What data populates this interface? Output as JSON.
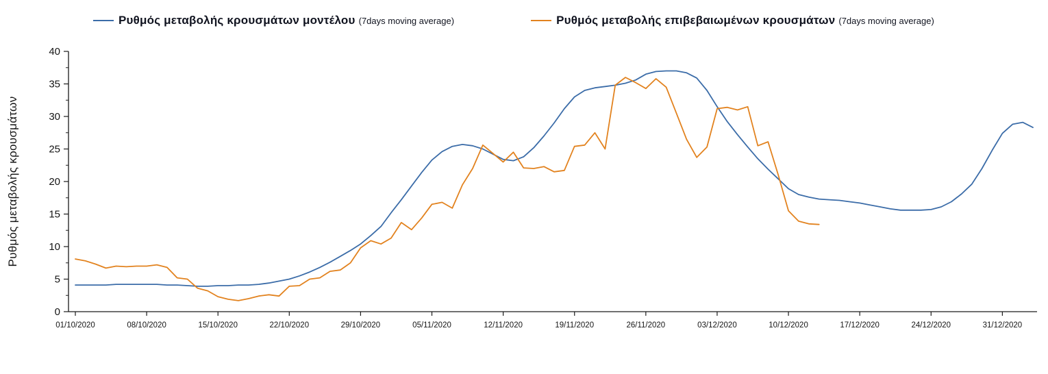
{
  "colors": {
    "model_line": "#3B6CA8",
    "confirmed_line": "#E2821E",
    "axis": "#1a1a1a",
    "text": "#10131f",
    "background": "#ffffff"
  },
  "legend": [
    {
      "label": "Ρυθμός μεταβολής κρουσμάτων μοντέλου",
      "suffix": "(7days moving average)"
    },
    {
      "label": "Ρυθμός μεταβολής επιβεβαιωμένων κρουσμάτων",
      "suffix": "(7days moving average)"
    }
  ],
  "y_axis": {
    "title": "Ρυθμός μεταβολής κρουσμάτων",
    "min": 0,
    "max": 40,
    "major_step": 5,
    "minor_step": 2.5,
    "tick_labels": [
      "0",
      "5",
      "10",
      "15",
      "20",
      "25",
      "30",
      "35",
      "40"
    ]
  },
  "x_axis": {
    "tick_interval_days": 7,
    "tick_labels": [
      "01/10/2020",
      "08/10/2020",
      "15/10/2020",
      "22/10/2020",
      "29/10/2020",
      "05/11/2020",
      "12/11/2020",
      "19/11/2020",
      "26/11/2020",
      "03/12/2020",
      "10/12/2020",
      "17/12/2020",
      "24/12/2020",
      "31/12/2020"
    ]
  },
  "chart_data": {
    "type": "line",
    "title": "",
    "xlabel": "",
    "ylabel": "Ρυθμός μεταβολής κρουσμάτων",
    "x_start": "01/10/2020",
    "x_step_days": 1,
    "ylim": [
      0,
      40
    ],
    "grid": false,
    "legend_position": "top",
    "series": [
      {
        "name": "Ρυθμός μεταβολής κρουσμάτων μοντέλου (7days moving average)",
        "color": "#3B6CA8",
        "values": [
          4.1,
          4.1,
          4.1,
          4.1,
          4.2,
          4.2,
          4.2,
          4.2,
          4.2,
          4.1,
          4.1,
          4.0,
          3.9,
          3.9,
          4.0,
          4.0,
          4.1,
          4.1,
          4.2,
          4.4,
          4.7,
          5.0,
          5.5,
          6.1,
          6.8,
          7.6,
          8.5,
          9.4,
          10.4,
          11.7,
          13.1,
          15.2,
          17.2,
          19.3,
          21.4,
          23.3,
          24.6,
          25.4,
          25.7,
          25.5,
          25.0,
          24.2,
          23.4,
          23.2,
          23.8,
          25.2,
          27.0,
          29.0,
          31.2,
          33.0,
          34.0,
          34.4,
          34.6,
          34.8,
          35.1,
          35.6,
          36.5,
          36.9,
          37.0,
          37.0,
          36.7,
          35.9,
          34.0,
          31.5,
          29.2,
          27.2,
          25.3,
          23.5,
          21.9,
          20.4,
          18.9,
          18.0,
          17.6,
          17.3,
          17.2,
          17.1,
          16.9,
          16.7,
          16.4,
          16.1,
          15.8,
          15.6,
          15.6,
          15.6,
          15.7,
          16.1,
          16.9,
          18.1,
          19.6,
          22.0,
          24.8,
          27.4,
          28.8,
          29.1,
          28.3
        ]
      },
      {
        "name": "Ρυθμός μεταβολής επιβεβαιωμένων κρουσμάτων (7days moving average)",
        "color": "#E2821E",
        "values": [
          8.1,
          7.8,
          7.3,
          6.7,
          7.0,
          6.9,
          7.0,
          7.0,
          7.2,
          6.8,
          5.2,
          5.0,
          3.6,
          3.2,
          2.3,
          1.9,
          1.7,
          2.0,
          2.4,
          2.6,
          2.4,
          3.9,
          4.0,
          5.0,
          5.2,
          6.2,
          6.4,
          7.5,
          9.8,
          10.9,
          10.4,
          11.3,
          13.7,
          12.6,
          14.4,
          16.5,
          16.8,
          15.9,
          19.5,
          22.0,
          25.6,
          24.3,
          23.0,
          24.5,
          22.1,
          22.0,
          22.3,
          21.5,
          21.7,
          25.4,
          25.6,
          27.5,
          25.0,
          34.8,
          36.0,
          35.2,
          34.3,
          35.8,
          34.5,
          30.5,
          26.5,
          23.7,
          25.3,
          31.2,
          31.4,
          31.0,
          31.5,
          25.5,
          26.1,
          21.0,
          15.5,
          13.9,
          13.5,
          13.4
        ]
      }
    ]
  }
}
